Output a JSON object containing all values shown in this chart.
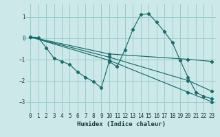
{
  "xlabel": "Humidex (Indice chaleur)",
  "background_color": "#cce8e8",
  "grid_color": "#99cccc",
  "line_color": "#1a6b6b",
  "xlim": [
    -0.5,
    23.5
  ],
  "ylim": [
    -3.5,
    1.6
  ],
  "xticks": [
    0,
    1,
    2,
    3,
    4,
    5,
    6,
    7,
    8,
    9,
    10,
    11,
    12,
    13,
    14,
    15,
    16,
    17,
    18,
    19,
    20,
    21,
    22,
    23
  ],
  "yticks": [
    -3,
    -2,
    -1,
    0,
    1
  ],
  "lines": [
    {
      "x": [
        0,
        1,
        2,
        3,
        4,
        5,
        6,
        7,
        8,
        9,
        10,
        11,
        12,
        13,
        14,
        15,
        16,
        17,
        18,
        19,
        20,
        21,
        22,
        23
      ],
      "y": [
        0.05,
        0.02,
        -0.45,
        -0.95,
        -1.1,
        -1.25,
        -1.6,
        -1.85,
        -2.05,
        -2.35,
        -1.1,
        -1.35,
        -0.55,
        0.4,
        1.1,
        1.15,
        0.75,
        0.3,
        -0.2,
        -1.05,
        -1.85,
        -2.55,
        -2.75,
        -2.85
      ]
    },
    {
      "x": [
        0,
        10,
        20,
        23
      ],
      "y": [
        0.05,
        -0.75,
        -1.0,
        -1.1
      ]
    },
    {
      "x": [
        0,
        10,
        20,
        23
      ],
      "y": [
        0.05,
        -0.9,
        -2.0,
        -2.5
      ]
    },
    {
      "x": [
        0,
        10,
        20,
        23
      ],
      "y": [
        0.05,
        -1.05,
        -2.55,
        -3.0
      ]
    }
  ]
}
